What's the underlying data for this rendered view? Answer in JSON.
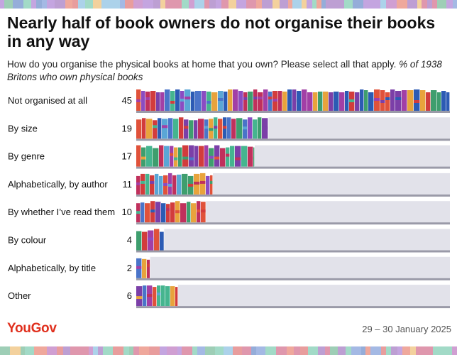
{
  "header": {
    "title": "Nearly half of book owners do not organise their books in any way",
    "question": "How do you organise the physical books at home that you own? Please select all that apply.",
    "base": "% of 1938 Britons who own physical books"
  },
  "footer": {
    "brand": "YouGov",
    "date": "29 – 30 January 2025"
  },
  "colors": {
    "track": "#e2e2ea",
    "brand": "#e0301e",
    "book_palette": [
      "#7b3fa8",
      "#d23c3c",
      "#45b58f",
      "#4a74c9",
      "#2c5bb4",
      "#a23fa6",
      "#e0523a",
      "#5aa6d6",
      "#3e9e6e",
      "#c0305c",
      "#8a4cc2",
      "#e8a33c"
    ]
  },
  "chart_data": {
    "type": "bar",
    "orientation": "horizontal",
    "categories": [
      "Not organised at all",
      "By size",
      "By genre",
      "Alphabetically, by author",
      "By whether I’ve read them",
      "By colour",
      "Alphabetically, by title",
      "Other"
    ],
    "values": [
      45,
      19,
      17,
      11,
      10,
      4,
      2,
      6
    ],
    "xlim": [
      0,
      45
    ],
    "grid": false,
    "legend": "none",
    "value_labels": true
  }
}
